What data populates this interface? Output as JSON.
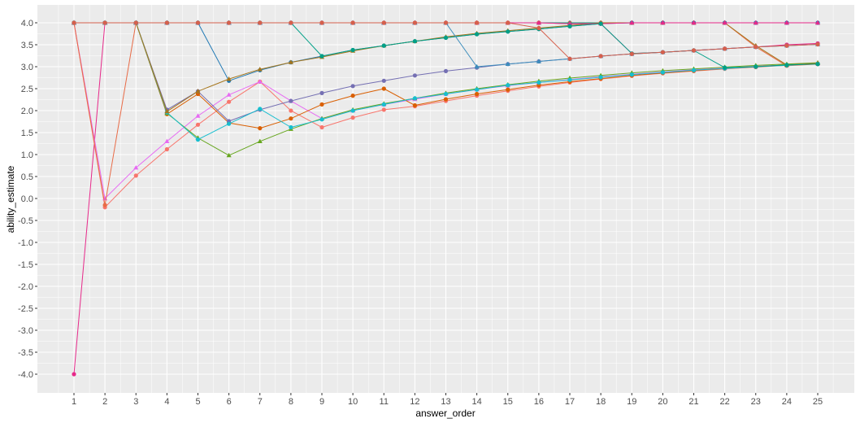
{
  "chart_data": {
    "type": "line",
    "title": "",
    "xlabel": "answer_order",
    "ylabel": "ability_estimate",
    "xlim": [
      1,
      25
    ],
    "ylim": [
      -4,
      4
    ],
    "x_ticks": [
      1,
      2,
      3,
      4,
      5,
      6,
      7,
      8,
      9,
      10,
      11,
      12,
      13,
      14,
      15,
      16,
      17,
      18,
      19,
      20,
      21,
      22,
      23,
      24,
      25
    ],
    "y_ticks": [
      -4.0,
      -3.5,
      -3.0,
      -2.5,
      -2.0,
      -1.5,
      -1.0,
      -0.5,
      0.0,
      0.5,
      1.0,
      1.5,
      2.0,
      2.5,
      3.0,
      3.5,
      4.0
    ],
    "y_tick_labels": [
      "-4.0",
      "-3.5",
      "-3.0",
      "-2.5",
      "-2.0",
      "-1.5",
      "-1.0",
      "-0.5",
      "0.0",
      "0.5",
      "1.0",
      "1.5",
      "2.0",
      "2.5",
      "3.0",
      "3.5",
      "4.0"
    ],
    "grid": true,
    "legend": "none",
    "background": "#ebebeb",
    "grid_color": "#ffffff",
    "x": [
      1,
      2,
      3,
      4,
      5,
      6,
      7,
      8,
      9,
      10,
      11,
      12,
      13,
      14,
      15,
      16,
      17,
      18,
      19,
      20,
      21,
      22,
      23,
      24,
      25
    ],
    "series": [
      {
        "color": "#e7298a",
        "marker": "circle",
        "values": [
          -4.0,
          4.0,
          4.0,
          4.0,
          4.0,
          4.0,
          4.0,
          4.0,
          4.0,
          4.0,
          4.0,
          4.0,
          4.0,
          4.0,
          4.0,
          4.0,
          3.98,
          3.98,
          3.3,
          3.33,
          3.37,
          3.41,
          3.45,
          3.5,
          3.53
        ]
      },
      {
        "color": "#f8766d",
        "marker": "circle",
        "values": [
          4.0,
          -0.2,
          0.52,
          1.12,
          1.68,
          2.2,
          2.66,
          2.0,
          1.62,
          1.84,
          2.02,
          2.1,
          2.22,
          2.34,
          2.45,
          2.55,
          2.64,
          2.72,
          2.79,
          2.85,
          2.9,
          2.95,
          2.99,
          3.03,
          3.07
        ]
      },
      {
        "color": "#e76bf3",
        "marker": "triangle",
        "values": [
          4.0,
          0.0,
          0.7,
          1.3,
          1.88,
          2.36,
          2.66,
          2.22,
          1.82,
          2.0,
          2.14,
          2.26,
          2.38,
          2.48,
          2.57,
          2.64,
          2.71,
          2.77,
          2.83,
          2.88,
          2.93,
          2.97,
          3.01,
          3.04,
          3.07
        ]
      },
      {
        "color": "#e86b47",
        "marker": "circle",
        "values": [
          4.0,
          -0.15,
          4.0,
          4.0,
          4.0,
          4.0,
          4.0,
          4.0,
          4.0,
          4.0,
          4.0,
          4.0,
          4.0,
          4.0,
          4.0,
          4.0,
          4.0,
          4.0,
          4.0,
          4.0,
          4.0,
          4.0,
          3.45,
          3.02,
          3.06
        ]
      },
      {
        "color": "#1b9e77",
        "marker": "triangle",
        "values": [
          4.0,
          4.0,
          4.0,
          4.0,
          4.0,
          4.0,
          4.0,
          4.0,
          4.0,
          4.0,
          4.0,
          4.0,
          4.0,
          4.0,
          4.0,
          4.0,
          4.0,
          4.0,
          4.0,
          4.0,
          4.0,
          4.0,
          4.0,
          4.0,
          4.0
        ]
      },
      {
        "color": "#d95f02",
        "marker": "circle",
        "values": [
          4.0,
          4.0,
          4.0,
          1.92,
          2.38,
          1.72,
          1.6,
          1.82,
          2.14,
          2.34,
          2.5,
          2.12,
          2.26,
          2.38,
          2.48,
          2.58,
          2.66,
          2.73,
          2.8,
          2.86,
          2.91,
          2.96,
          3.0,
          3.04,
          3.07
        ]
      },
      {
        "color": "#7570b3",
        "marker": "circle",
        "values": [
          4.0,
          4.0,
          4.0,
          2.02,
          2.44,
          1.76,
          2.02,
          2.22,
          2.4,
          2.56,
          2.68,
          2.8,
          2.9,
          2.98,
          3.06,
          3.12,
          3.18,
          3.24,
          3.29,
          3.33,
          3.37,
          3.41,
          3.45,
          3.48,
          3.51
        ]
      },
      {
        "color": "#66a61e",
        "marker": "triangle",
        "values": [
          4.0,
          4.0,
          4.0,
          1.94,
          1.38,
          0.98,
          1.3,
          1.58,
          1.82,
          2.02,
          2.16,
          2.28,
          2.4,
          2.5,
          2.59,
          2.67,
          2.74,
          2.8,
          2.86,
          2.91,
          2.95,
          2.99,
          3.03,
          3.06,
          3.09
        ]
      },
      {
        "color": "#1f78b4",
        "marker": "circle",
        "values": [
          4.0,
          4.0,
          4.0,
          4.0,
          4.0,
          2.68,
          2.92,
          3.1,
          3.24,
          3.38,
          3.48,
          3.58,
          3.66,
          3.74,
          3.8,
          3.86,
          3.92,
          3.98,
          4.0,
          4.0,
          4.0,
          4.0,
          4.0,
          4.0,
          4.0
        ]
      },
      {
        "color": "#17becf",
        "marker": "circle",
        "values": [
          4.0,
          4.0,
          4.0,
          1.96,
          1.34,
          1.7,
          2.04,
          1.62,
          1.8,
          2.0,
          2.14,
          2.28,
          2.38,
          2.48,
          2.58,
          2.64,
          2.7,
          2.76,
          2.82,
          2.87,
          2.92,
          2.96,
          3.0,
          3.03,
          3.07
        ]
      },
      {
        "color": "#a6761d",
        "marker": "triangle",
        "values": [
          4.0,
          4.0,
          4.0,
          1.98,
          2.44,
          2.72,
          2.94,
          3.1,
          3.22,
          3.36,
          3.48,
          3.58,
          3.68,
          3.76,
          3.82,
          3.88,
          3.94,
          4.0,
          4.0,
          4.0,
          4.0,
          4.0,
          3.48,
          3.04,
          3.08
        ]
      },
      {
        "color": "#e7298a",
        "marker": "triangle",
        "values": [
          4.0,
          4.0,
          4.0,
          4.0,
          4.0,
          4.0,
          4.0,
          4.0,
          4.0,
          4.0,
          4.0,
          4.0,
          4.0,
          4.0,
          4.0,
          4.0,
          3.98,
          3.98,
          4.0,
          4.0,
          4.0,
          4.0,
          4.0,
          4.0,
          4.0
        ]
      },
      {
        "color": "#00a087",
        "marker": "circle",
        "values": [
          4.0,
          4.0,
          4.0,
          4.0,
          4.0,
          4.0,
          4.0,
          4.0,
          3.24,
          3.38,
          3.48,
          3.58,
          3.66,
          3.74,
          3.8,
          3.86,
          3.92,
          3.98,
          3.3,
          3.33,
          3.37,
          2.98,
          3.0,
          3.04,
          3.06
        ]
      },
      {
        "color": "#3c8dbc",
        "marker": "triangle",
        "values": [
          4.0,
          4.0,
          4.0,
          4.0,
          4.0,
          4.0,
          4.0,
          4.0,
          4.0,
          4.0,
          4.0,
          4.0,
          4.0,
          3.0,
          3.06,
          3.12,
          3.18,
          3.24,
          3.29,
          3.33,
          3.37,
          3.41,
          3.45,
          3.48,
          3.51
        ]
      },
      {
        "color": "#d6604d",
        "marker": "circle",
        "values": [
          4.0,
          4.0,
          4.0,
          4.0,
          4.0,
          4.0,
          4.0,
          4.0,
          4.0,
          4.0,
          4.0,
          4.0,
          4.0,
          4.0,
          4.0,
          3.88,
          3.18,
          3.24,
          3.29,
          3.33,
          3.37,
          3.41,
          3.45,
          3.48,
          3.51
        ]
      }
    ]
  }
}
